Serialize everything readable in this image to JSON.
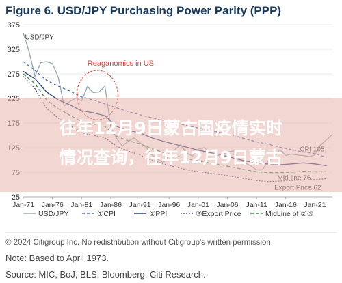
{
  "figure_title": "Figure 6. USD/JPY Purchasing Power Parity (PPP)",
  "overlay_text": {
    "line1": "往年12月9日蒙古国疫情实时",
    "line2": "情况查询，往年12月9日蒙古"
  },
  "footer": {
    "copyright": "© 2024 Citigroup Inc. No redistribution without Citigroup's written permission.",
    "note": "Note: Based to April 1973.",
    "source": "Source: MIC, BoJ, BLS, Bloomberg, Citi Research."
  },
  "colors": {
    "title": "#173a5e",
    "usdjpy": "#9aa8b6",
    "cpi": "#4a6fb5",
    "ppi": "#2c3f7a",
    "export_price": "#5b4e8a",
    "midline": "#3f8a4f",
    "annotation": "#d9443a",
    "overlay_band": "#e7b4ad"
  },
  "chart_data": {
    "type": "line",
    "title": "Figure 6. USD/JPY Purchasing Power Parity (PPP)",
    "ylim": [
      25,
      375
    ],
    "yticks": [
      25,
      75,
      125,
      175,
      225,
      275,
      325,
      375
    ],
    "xlim": [
      1971,
      2024
    ],
    "xticks": [
      {
        "label": "Jan-71",
        "x": 1971
      },
      {
        "label": "Jan-76",
        "x": 1976
      },
      {
        "label": "Jan-81",
        "x": 1981
      },
      {
        "label": "Jan-86",
        "x": 1986
      },
      {
        "label": "Jan-91",
        "x": 1991
      },
      {
        "label": "Jan-96",
        "x": 1996
      },
      {
        "label": "Jan-01",
        "x": 2001
      },
      {
        "label": "Jan-06",
        "x": 2006
      },
      {
        "label": "Jan-11",
        "x": 2011
      },
      {
        "label": "Jan-16",
        "x": 2016
      },
      {
        "label": "Jan-21",
        "x": 2021
      }
    ],
    "grid": true,
    "legend_position": "bottom",
    "series": [
      {
        "key": "usdjpy",
        "name": "USD/JPY",
        "dash": "",
        "points": [
          [
            1971,
            358
          ],
          [
            1972,
            320
          ],
          [
            1973,
            270
          ],
          [
            1974,
            298
          ],
          [
            1975,
            300
          ],
          [
            1976,
            296
          ],
          [
            1977,
            268
          ],
          [
            1978,
            210
          ],
          [
            1979,
            219
          ],
          [
            1980,
            226
          ],
          [
            1981,
            220
          ],
          [
            1982,
            249
          ],
          [
            1983,
            237
          ],
          [
            1984,
            238
          ],
          [
            1985,
            250
          ],
          [
            1986,
            168
          ],
          [
            1987,
            144
          ],
          [
            1988,
            128
          ],
          [
            1989,
            138
          ],
          [
            1990,
            145
          ],
          [
            1991,
            135
          ],
          [
            1992,
            127
          ],
          [
            1993,
            111
          ],
          [
            1994,
            102
          ],
          [
            1995,
            94
          ],
          [
            1996,
            109
          ],
          [
            1997,
            121
          ],
          [
            1998,
            131
          ],
          [
            1999,
            114
          ],
          [
            2000,
            108
          ],
          [
            2001,
            122
          ],
          [
            2002,
            125
          ],
          [
            2003,
            116
          ],
          [
            2004,
            108
          ],
          [
            2005,
            110
          ],
          [
            2006,
            116
          ],
          [
            2007,
            118
          ],
          [
            2008,
            103
          ],
          [
            2009,
            94
          ],
          [
            2010,
            88
          ],
          [
            2011,
            80
          ],
          [
            2012,
            80
          ],
          [
            2013,
            98
          ],
          [
            2014,
            106
          ],
          [
            2015,
            121
          ],
          [
            2016,
            109
          ],
          [
            2017,
            112
          ],
          [
            2018,
            110
          ],
          [
            2019,
            109
          ],
          [
            2020,
            107
          ],
          [
            2021,
            110
          ],
          [
            2022,
            131
          ],
          [
            2023,
            141
          ],
          [
            2024,
            152
          ]
        ]
      },
      {
        "key": "cpi",
        "name": "①CPI",
        "dash": "4 3",
        "points": [
          [
            1971,
            300
          ],
          [
            1973,
            282
          ],
          [
            1975,
            262
          ],
          [
            1977,
            250
          ],
          [
            1979,
            240
          ],
          [
            1981,
            228
          ],
          [
            1983,
            222
          ],
          [
            1985,
            214
          ],
          [
            1987,
            206
          ],
          [
            1989,
            198
          ],
          [
            1991,
            192
          ],
          [
            1993,
            186
          ],
          [
            1995,
            180
          ],
          [
            1997,
            175
          ],
          [
            1999,
            170
          ],
          [
            2001,
            165
          ],
          [
            2003,
            160
          ],
          [
            2005,
            155
          ],
          [
            2007,
            150
          ],
          [
            2009,
            143
          ],
          [
            2011,
            137
          ],
          [
            2013,
            132
          ],
          [
            2015,
            126
          ],
          [
            2017,
            121
          ],
          [
            2019,
            116
          ],
          [
            2021,
            113
          ],
          [
            2023,
            105
          ]
        ]
      },
      {
        "key": "ppi",
        "name": "②PPI",
        "dash": "",
        "points": [
          [
            1971,
            280
          ],
          [
            1973,
            265
          ],
          [
            1975,
            238
          ],
          [
            1977,
            222
          ],
          [
            1979,
            212
          ],
          [
            1981,
            200
          ],
          [
            1983,
            196
          ],
          [
            1985,
            190
          ],
          [
            1987,
            168
          ],
          [
            1989,
            160
          ],
          [
            1991,
            155
          ],
          [
            1993,
            145
          ],
          [
            1995,
            138
          ],
          [
            1997,
            132
          ],
          [
            1999,
            126
          ],
          [
            2001,
            120
          ],
          [
            2003,
            115
          ],
          [
            2005,
            110
          ],
          [
            2007,
            104
          ],
          [
            2009,
            98
          ],
          [
            2011,
            94
          ],
          [
            2013,
            92
          ],
          [
            2015,
            90
          ],
          [
            2017,
            92
          ],
          [
            2019,
            94
          ],
          [
            2021,
            92
          ],
          [
            2023,
            88
          ]
        ]
      },
      {
        "key": "export_price",
        "name": "③Export Price",
        "dash": "2 2",
        "points": [
          [
            1971,
            270
          ],
          [
            1973,
            245
          ],
          [
            1975,
            205
          ],
          [
            1977,
            185
          ],
          [
            1979,
            170
          ],
          [
            1981,
            155
          ],
          [
            1983,
            150
          ],
          [
            1985,
            145
          ],
          [
            1987,
            128
          ],
          [
            1989,
            118
          ],
          [
            1991,
            110
          ],
          [
            1993,
            100
          ],
          [
            1995,
            92
          ],
          [
            1997,
            86
          ],
          [
            1999,
            80
          ],
          [
            2001,
            76
          ],
          [
            2003,
            73
          ],
          [
            2005,
            70
          ],
          [
            2007,
            66
          ],
          [
            2009,
            62
          ],
          [
            2011,
            58
          ],
          [
            2013,
            56
          ],
          [
            2015,
            57
          ],
          [
            2017,
            58
          ],
          [
            2019,
            59
          ],
          [
            2021,
            60
          ],
          [
            2023,
            62
          ]
        ]
      },
      {
        "key": "midline",
        "name": "MidLine of ②③",
        "dash": "5 3",
        "points": [
          [
            1971,
            275
          ],
          [
            1973,
            255
          ],
          [
            1975,
            222
          ],
          [
            1977,
            204
          ],
          [
            1979,
            191
          ],
          [
            1981,
            178
          ],
          [
            1983,
            173
          ],
          [
            1985,
            168
          ],
          [
            1987,
            148
          ],
          [
            1989,
            139
          ],
          [
            1991,
            133
          ],
          [
            1993,
            123
          ],
          [
            1995,
            115
          ],
          [
            1997,
            109
          ],
          [
            1999,
            103
          ],
          [
            2001,
            98
          ],
          [
            2003,
            94
          ],
          [
            2005,
            90
          ],
          [
            2007,
            85
          ],
          [
            2009,
            80
          ],
          [
            2011,
            76
          ],
          [
            2013,
            74
          ],
          [
            2015,
            74
          ],
          [
            2017,
            75
          ],
          [
            2019,
            77
          ],
          [
            2021,
            76
          ],
          [
            2023,
            76
          ]
        ]
      }
    ],
    "annotations": [
      {
        "text": "Reaganomics in US"
      },
      {
        "text": "CPI 105",
        "series": "cpi",
        "x": 2023
      },
      {
        "text": "Mid-line 76",
        "series": "midline",
        "x": 2021
      },
      {
        "text": "Export Price 62",
        "series": "export_price",
        "x": 2023
      }
    ]
  }
}
